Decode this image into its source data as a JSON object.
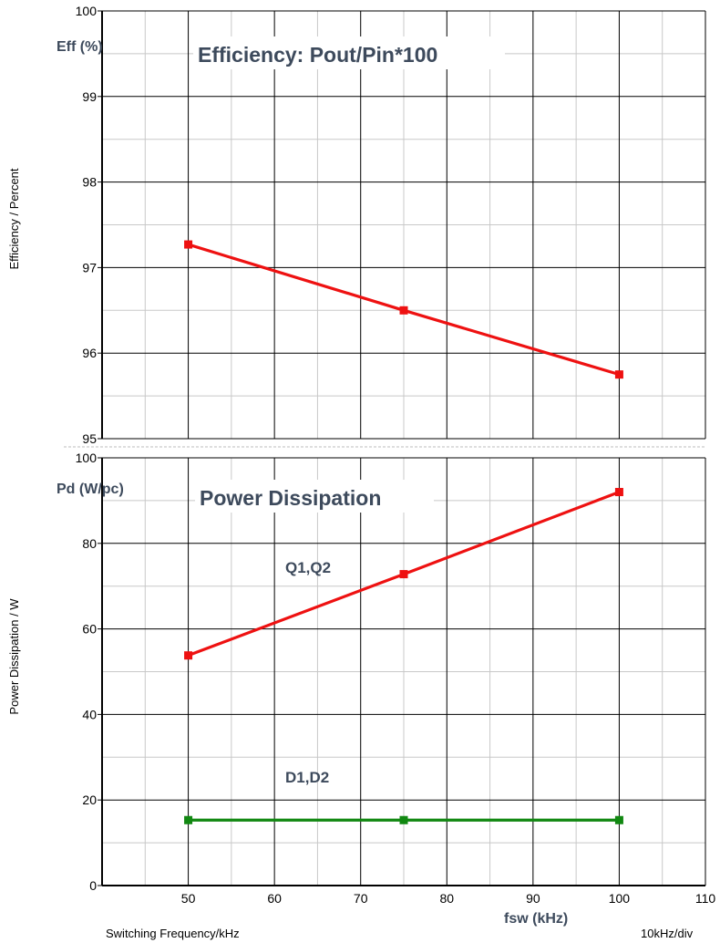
{
  "chart_data": [
    {
      "type": "line",
      "title": "Efficiency: Pout/Pin*100",
      "ylabel": "Efficiency / Percent",
      "yunit": "Eff (%)",
      "ylim": [
        95,
        100
      ],
      "yticks": [
        95,
        96,
        97,
        98,
        99,
        100
      ],
      "xlim": [
        40,
        110
      ],
      "grid": true,
      "series": [
        {
          "color": "#ee1111",
          "x": [
            50,
            75,
            100
          ],
          "y": [
            97.27,
            96.5,
            95.75
          ]
        }
      ]
    },
    {
      "type": "line",
      "title": "Power Dissipation",
      "ylabel": "Power Dissipation / W",
      "yunit": "Pd (W/pc)",
      "xlabel": "Switching Frequency/kHz",
      "xunit": "fsw (kHz)",
      "xdiv": "10kHz/div",
      "ylim": [
        0,
        100
      ],
      "yticks": [
        0,
        20,
        40,
        60,
        80,
        100
      ],
      "xlim": [
        40,
        110
      ],
      "xticks": [
        50,
        60,
        70,
        80,
        90,
        100,
        110
      ],
      "grid": true,
      "series": [
        {
          "name": "Q1,Q2",
          "color": "#ee1111",
          "x": [
            50,
            75,
            100
          ],
          "y": [
            53.8,
            72.8,
            92
          ]
        },
        {
          "name": "D1,D2",
          "color": "#118811",
          "x": [
            50,
            75,
            100
          ],
          "y": [
            15.3,
            15.3,
            15.3
          ]
        }
      ]
    }
  ]
}
